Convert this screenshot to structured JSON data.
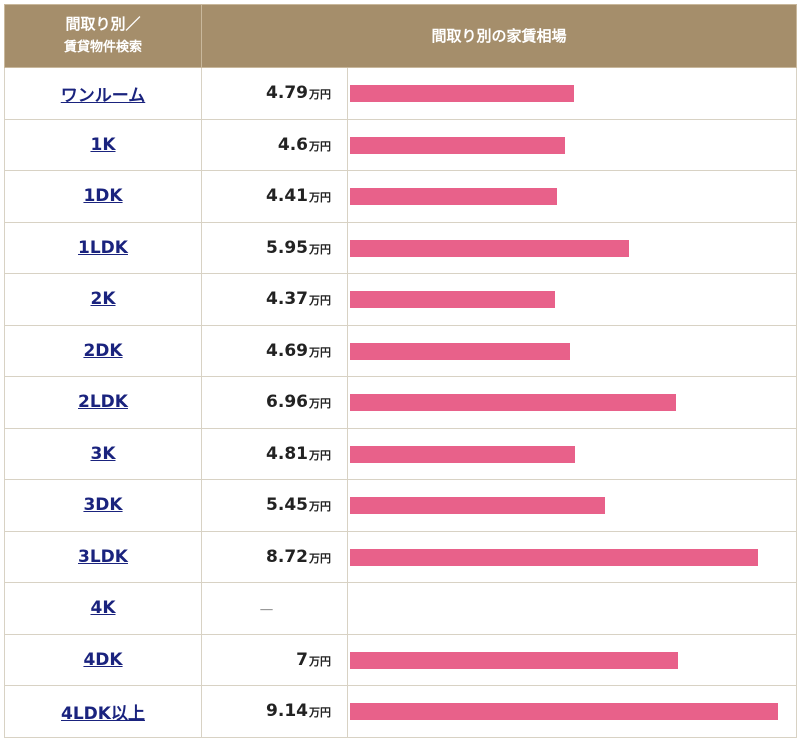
{
  "header": {
    "col1_line1": "間取り別／",
    "col1_line2": "賃貸物件検索",
    "col2": "間取り別の家賃相場"
  },
  "unit": "万円",
  "missing": "－",
  "chart_data": {
    "type": "bar",
    "orientation": "horizontal",
    "title": "間取り別の家賃相場",
    "unit": "万円",
    "categories": [
      "ワンルーム",
      "1K",
      "1DK",
      "1LDK",
      "2K",
      "2DK",
      "2LDK",
      "3K",
      "3DK",
      "3LDK",
      "4K",
      "4DK",
      "4LDK以上"
    ],
    "values": [
      4.79,
      4.6,
      4.41,
      5.95,
      4.37,
      4.69,
      6.96,
      4.81,
      5.45,
      8.72,
      null,
      7,
      9.14
    ],
    "labels": [
      "4.79",
      "4.6",
      "4.41",
      "5.95",
      "4.37",
      "4.69",
      "6.96",
      "4.81",
      "5.45",
      "8.72",
      "－",
      "7",
      "9.14"
    ],
    "color": "#e8618a"
  }
}
